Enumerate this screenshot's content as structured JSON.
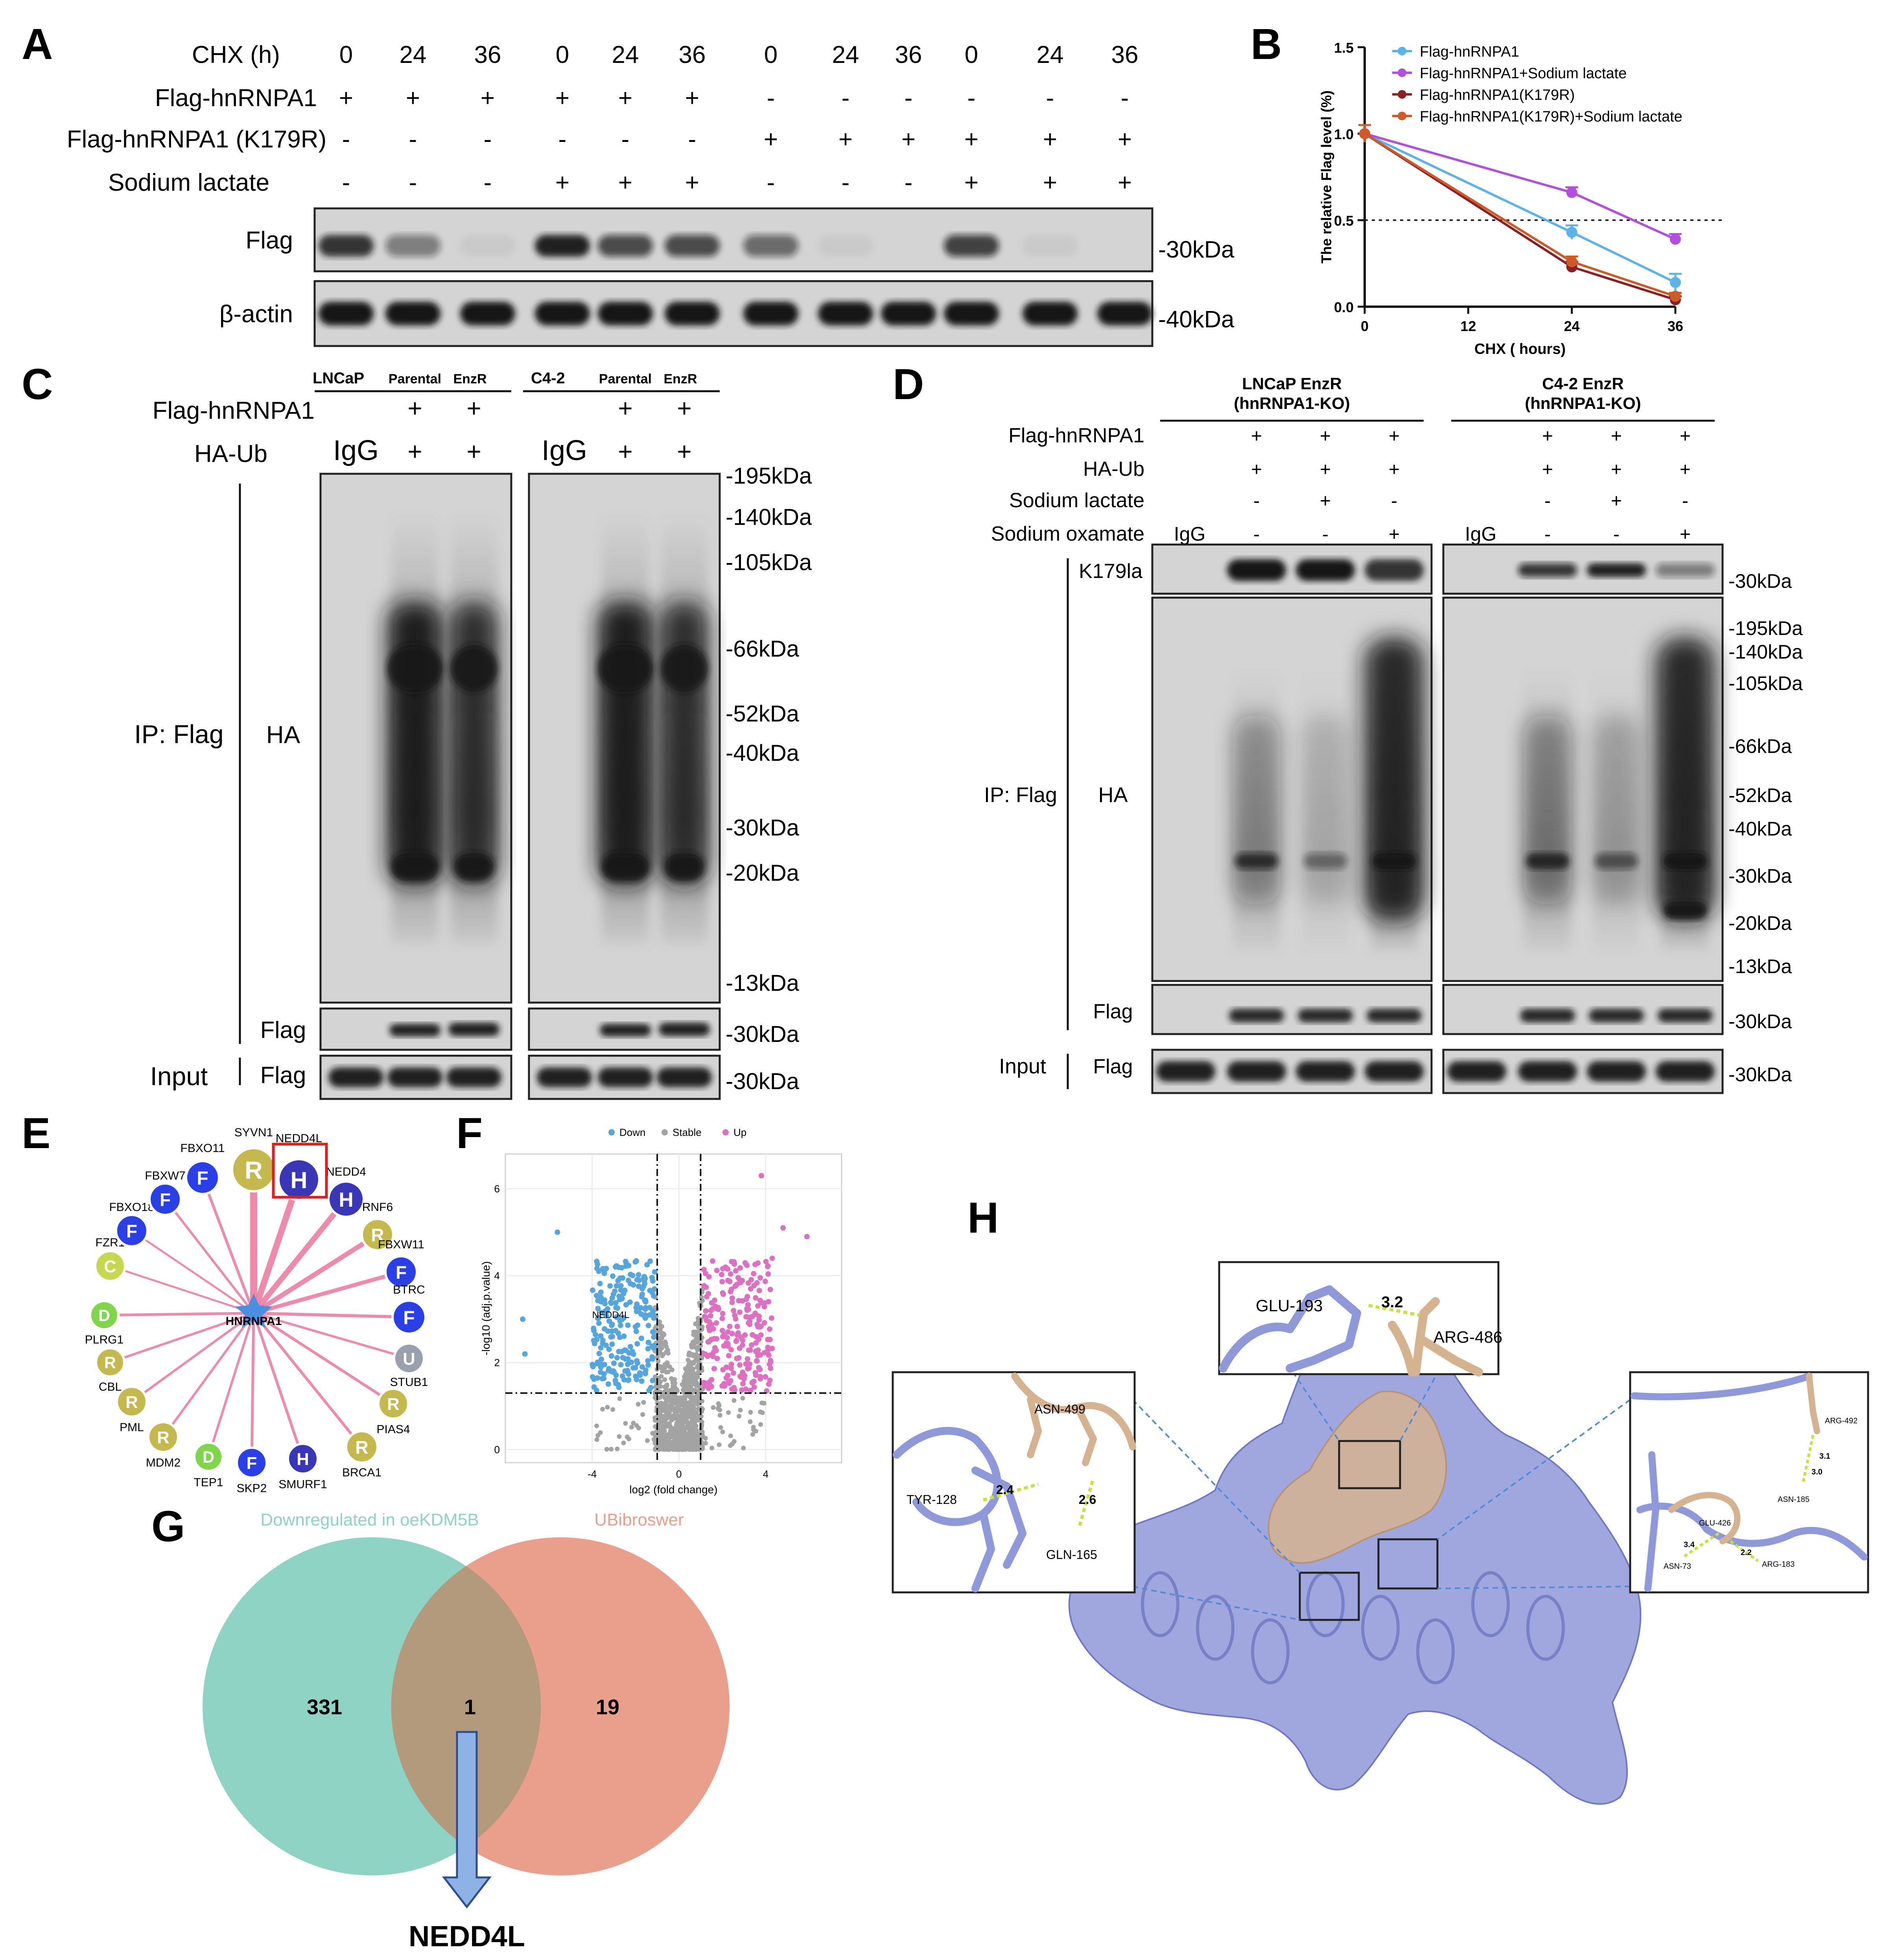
{
  "colors": {
    "blot_bg": "#d4d4d4",
    "band": "#141414",
    "frame": "#222222",
    "net_edge": "#ec7da1",
    "node_F": "#2a3fe6",
    "node_H": "#3a36b8",
    "node_R": "#c4b84e",
    "node_U": "#9aa0ae",
    "node_C": "#c6d84e",
    "node_D": "#7fd64a",
    "hub": "#4a8fe0",
    "venn_left": "#8ed3c4",
    "venn_right": "#ea9f8c",
    "venn_overlap": "#b39a7c",
    "arrow": "#8fb2e6",
    "protein_blue": "#8f98d8",
    "protein_tan": "#d6b390",
    "hbond": "#c8e040",
    "line_flag": "#5bb3ea",
    "line_flag_sl": "#b050dc",
    "line_k179r": "#8b1f23",
    "line_k179r_sl": "#cf5a28",
    "volcano_down": "#55a6dc",
    "volcano_stable": "#a3a3a3",
    "volcano_up": "#de70c2"
  },
  "panelA": {
    "letter": "A",
    "rows": [
      {
        "label": "CHX (h)",
        "values": [
          "0",
          "24",
          "36",
          "0",
          "24",
          "36",
          "0",
          "24",
          "36",
          "0",
          "24",
          "36"
        ]
      },
      {
        "label": "Flag-hnRNPA1",
        "values": [
          "+",
          "+",
          "+",
          "+",
          "+",
          "+",
          "-",
          "-",
          "-",
          "-",
          "-",
          "-"
        ]
      },
      {
        "label": "Flag-hnRNPA1 (K179R)",
        "values": [
          "-",
          "-",
          "-",
          "-",
          "-",
          "-",
          "+",
          "+",
          "+",
          "+",
          "+",
          "+"
        ]
      },
      {
        "label": "Sodium lactate",
        "values": [
          "-",
          "-",
          "-",
          "+",
          "+",
          "+",
          "-",
          "-",
          "-",
          "+",
          "+",
          "+"
        ]
      }
    ],
    "blots": [
      {
        "label": "Flag",
        "marker": "-30kDa",
        "intensities": [
          0.85,
          0.45,
          0.05,
          0.95,
          0.7,
          0.7,
          0.55,
          0.05,
          0.02,
          0.75,
          0.05,
          0.02
        ]
      },
      {
        "label": "β-actin",
        "marker": "-40kDa",
        "intensities": [
          1,
          1,
          1,
          1,
          1,
          1,
          1,
          1,
          1,
          1,
          1,
          1
        ]
      }
    ]
  },
  "panelB": {
    "letter": "B",
    "chart_data": {
      "type": "line",
      "x": [
        0,
        24,
        36
      ],
      "xlabel": "CHX ( hours)",
      "ylabel": "The relative Flag level (%)",
      "xlim": [
        0,
        36
      ],
      "ylim": [
        0,
        1.5
      ],
      "xticks": [
        "0",
        "12",
        "24",
        "36"
      ],
      "yticks": [
        "0.0",
        "0.5",
        "1.0",
        "1.5"
      ],
      "reference_line": 0.5,
      "legend_position": "top-left",
      "series": [
        {
          "name": "Flag-hnRNPA1",
          "values": [
            1.0,
            0.43,
            0.14
          ],
          "errors": [
            0.05,
            0.04,
            0.05
          ]
        },
        {
          "name": "Flag-hnRNPA1+Sodium lactate",
          "values": [
            1.0,
            0.66,
            0.39
          ],
          "errors": [
            0.05,
            0.03,
            0.03
          ]
        },
        {
          "name": "Flag-hnRNPA1(K179R)",
          "values": [
            1.0,
            0.23,
            0.04
          ],
          "errors": [
            0.05,
            0.03,
            0.02
          ]
        },
        {
          "name": "Flag-hnRNPA1(K179R)+Sodium lactate",
          "values": [
            1.0,
            0.26,
            0.06
          ],
          "errors": [
            0.05,
            0.03,
            0.02
          ]
        }
      ]
    }
  },
  "panelC": {
    "letter": "C",
    "cell_groups": [
      {
        "name": "LNCaP",
        "cols": [
          "Parental",
          "EnzR"
        ]
      },
      {
        "name": "C4-2",
        "cols": [
          "Parental",
          "EnzR"
        ]
      }
    ],
    "rows": [
      {
        "label": "Flag-hnRNPA1",
        "values": [
          "",
          "+",
          "+"
        ]
      },
      {
        "label": "HA-Ub",
        "values": [
          "IgG",
          "+",
          "+"
        ]
      }
    ],
    "ip_label": "IP: Flag",
    "ha_label": "HA",
    "flag_label": "Flag",
    "input_label": "Input",
    "input_flag_label": "Flag",
    "markers": [
      "-195kDa",
      "-140kDa",
      "-105kDa",
      "-66kDa",
      "-52kDa",
      "-40kDa",
      "-30kDa",
      "-20kDa",
      "-13kDa"
    ],
    "flag_marker": "-30kDa",
    "input_marker": "-30kDa"
  },
  "panelD": {
    "letter": "D",
    "groups": [
      {
        "title": "LNCaP EnzR",
        "subtitle": "(hnRNPA1-KO)"
      },
      {
        "title": "C4-2 EnzR",
        "subtitle": "(hnRNPA1-KO)"
      }
    ],
    "rows": [
      {
        "label": "Flag-hnRNPA1",
        "values": [
          "",
          "+",
          "+",
          "+"
        ]
      },
      {
        "label": "HA-Ub",
        "values": [
          "",
          "+",
          "+",
          "+"
        ]
      },
      {
        "label": "Sodium lactate",
        "values": [
          "",
          "-",
          "+",
          "-"
        ]
      },
      {
        "label": "Sodium oxamate",
        "values": [
          "IgG",
          "-",
          "-",
          "+"
        ]
      }
    ],
    "k179la_label": "K179la",
    "k179la_marker": "-30kDa",
    "ip_label": "IP: Flag",
    "ha_label": "HA",
    "flag_label": "Flag",
    "input_label": "Input",
    "input_flag_label": "Flag",
    "markers": [
      "-195kDa",
      "-140kDa",
      "-105kDa",
      "-66kDa",
      "-52kDa",
      "-40kDa",
      "-30kDa",
      "-20kDa",
      "-13kDa"
    ],
    "flag_marker": "-30kDa",
    "input_marker": "-30kDa"
  },
  "panelE": {
    "letter": "E",
    "hub": "HNRNPA1",
    "highlight": "NEDD4L",
    "nodes": [
      {
        "name": "NEDD4L",
        "type": "H"
      },
      {
        "name": "NEDD4",
        "type": "H"
      },
      {
        "name": "RNF6",
        "type": "R"
      },
      {
        "name": "FBXW11",
        "type": "F"
      },
      {
        "name": "BTRC",
        "type": "F"
      },
      {
        "name": "STUB1",
        "type": "U"
      },
      {
        "name": "PIAS4",
        "type": "R"
      },
      {
        "name": "BRCA1",
        "type": "R"
      },
      {
        "name": "SMURF1",
        "type": "H"
      },
      {
        "name": "SKP2",
        "type": "F"
      },
      {
        "name": "TEP1",
        "type": "D"
      },
      {
        "name": "MDM2",
        "type": "R"
      },
      {
        "name": "PML",
        "type": "R"
      },
      {
        "name": "CBL",
        "type": "R"
      },
      {
        "name": "PLRG1",
        "type": "D"
      },
      {
        "name": "FZR1",
        "type": "C"
      },
      {
        "name": "FBXO18",
        "type": "F"
      },
      {
        "name": "FBXW7",
        "type": "F"
      },
      {
        "name": "FBXO11",
        "type": "F"
      },
      {
        "name": "SYVN1",
        "type": "R"
      }
    ]
  },
  "panelF": {
    "letter": "F",
    "chart_data": {
      "type": "scatter",
      "xlabel": "log2 (fold change)",
      "ylabel": "-log10 (adj.p.value)",
      "xlim": [
        -8,
        7.5
      ],
      "ylim": [
        -0.3,
        6.8
      ],
      "xticks": [
        "-4",
        "0",
        "4"
      ],
      "yticks": [
        "0",
        "2",
        "4",
        "6"
      ],
      "fc_threshold": [
        -1,
        1
      ],
      "p_threshold": 1.3,
      "legend": [
        "Down",
        "Stable",
        "Up"
      ],
      "legend_position": "top",
      "annotation": "NEDD4L",
      "annotation_point": [
        -2.1,
        3.1
      ],
      "outliers": [
        {
          "group": "Up",
          "x": 3.8,
          "y": 6.3
        },
        {
          "group": "Up",
          "x": 4.8,
          "y": 5.1
        },
        {
          "group": "Up",
          "x": 5.9,
          "y": 4.9
        },
        {
          "group": "Up",
          "x": 4.3,
          "y": 4.4
        },
        {
          "group": "Down",
          "x": -5.6,
          "y": 5.0
        },
        {
          "group": "Down",
          "x": -7.2,
          "y": 3.0
        },
        {
          "group": "Down",
          "x": -7.1,
          "y": 2.2
        }
      ]
    }
  },
  "panelG": {
    "letter": "G",
    "left_set": "Downregulated in oeKDM5B",
    "right_set": "UBibroswer",
    "left_only": "331",
    "overlap": "1",
    "right_only": "19",
    "result": "NEDD4L"
  },
  "panelH": {
    "letter": "H",
    "top_inset": {
      "residues": [
        "GLU-193",
        "ARG-486"
      ],
      "distance": "3.2"
    },
    "left_inset": {
      "residues": [
        "ASN-499",
        "TYR-128",
        "GLN-165"
      ],
      "distances": [
        "2.4",
        "2.6"
      ]
    },
    "right_inset": {
      "residues": [
        "ARG-492",
        "ASN-185",
        "GLU-426",
        "ASN-73",
        "ARG-183"
      ],
      "distances": [
        "3.1",
        "3.0",
        "3.4",
        "2.2"
      ]
    }
  }
}
